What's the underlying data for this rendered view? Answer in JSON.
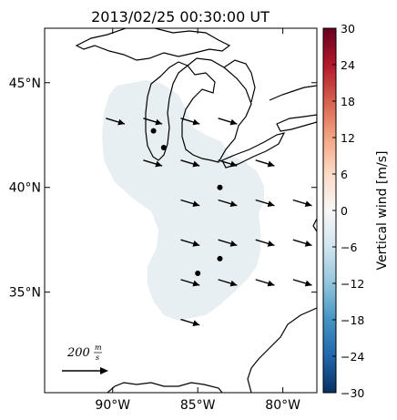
{
  "chart_data": {
    "type": "vector-map",
    "title": "2013/02/25 00:30:00 UT",
    "x_ticks": [
      {
        "lon": -90,
        "label": "90°W"
      },
      {
        "lon": -85,
        "label": "85°W"
      },
      {
        "lon": -80,
        "label": "80°W"
      }
    ],
    "y_ticks": [
      {
        "lat": 45,
        "label": "45°N"
      },
      {
        "lat": 40,
        "label": "40°N"
      },
      {
        "lat": 35,
        "label": "35°N"
      }
    ],
    "lon_range": [
      -94.0,
      -78.0
    ],
    "lat_range": [
      30.2,
      47.6
    ],
    "colorbar": {
      "label": "Vertical wind [m/s]",
      "range": [
        -30,
        30
      ],
      "ticks": [
        "30",
        "24",
        "18",
        "12",
        "6",
        "0",
        "−6",
        "−12",
        "−18",
        "−24",
        "−30"
      ],
      "colormap": "RdBu_r"
    },
    "shaded_value_ms": -1,
    "scale_arrow": {
      "value": 200,
      "unit_label": "m/s",
      "text": "200"
    },
    "stations": [
      {
        "lon": -87.6,
        "lat": 42.7
      },
      {
        "lon": -87.0,
        "lat": 41.9
      },
      {
        "lon": -83.7,
        "lat": 40.0
      },
      {
        "lon": -83.7,
        "lat": 36.6
      },
      {
        "lon": -85.0,
        "lat": 35.9
      }
    ],
    "vectors": [
      {
        "lon": -90.4,
        "lat": 43.3,
        "u": 200,
        "v": -60
      },
      {
        "lon": -88.2,
        "lat": 43.3,
        "u": 200,
        "v": -60
      },
      {
        "lon": -86.0,
        "lat": 43.3,
        "u": 200,
        "v": -60
      },
      {
        "lon": -83.8,
        "lat": 43.3,
        "u": 200,
        "v": -60
      },
      {
        "lon": -88.2,
        "lat": 41.3,
        "u": 200,
        "v": -60
      },
      {
        "lon": -86.0,
        "lat": 41.3,
        "u": 200,
        "v": -60
      },
      {
        "lon": -83.8,
        "lat": 41.3,
        "u": 200,
        "v": -60
      },
      {
        "lon": -81.6,
        "lat": 41.3,
        "u": 200,
        "v": -60
      },
      {
        "lon": -86.0,
        "lat": 39.4,
        "u": 200,
        "v": -60
      },
      {
        "lon": -83.8,
        "lat": 39.4,
        "u": 200,
        "v": -60
      },
      {
        "lon": -81.6,
        "lat": 39.4,
        "u": 200,
        "v": -60
      },
      {
        "lon": -79.4,
        "lat": 39.4,
        "u": 200,
        "v": -60
      },
      {
        "lon": -86.0,
        "lat": 37.5,
        "u": 200,
        "v": -60
      },
      {
        "lon": -83.8,
        "lat": 37.5,
        "u": 200,
        "v": -60
      },
      {
        "lon": -81.6,
        "lat": 37.5,
        "u": 200,
        "v": -60
      },
      {
        "lon": -79.4,
        "lat": 37.5,
        "u": 200,
        "v": -60
      },
      {
        "lon": -86.0,
        "lat": 35.6,
        "u": 200,
        "v": -60
      },
      {
        "lon": -83.8,
        "lat": 35.6,
        "u": 200,
        "v": -60
      },
      {
        "lon": -81.6,
        "lat": 35.6,
        "u": 200,
        "v": -60
      },
      {
        "lon": -79.4,
        "lat": 35.6,
        "u": 200,
        "v": -60
      },
      {
        "lon": -86.0,
        "lat": 33.7,
        "u": 200,
        "v": -60
      }
    ],
    "colors": {
      "shade": "#e8eff3",
      "land_line": "#000000",
      "arrow": "#000000"
    }
  }
}
